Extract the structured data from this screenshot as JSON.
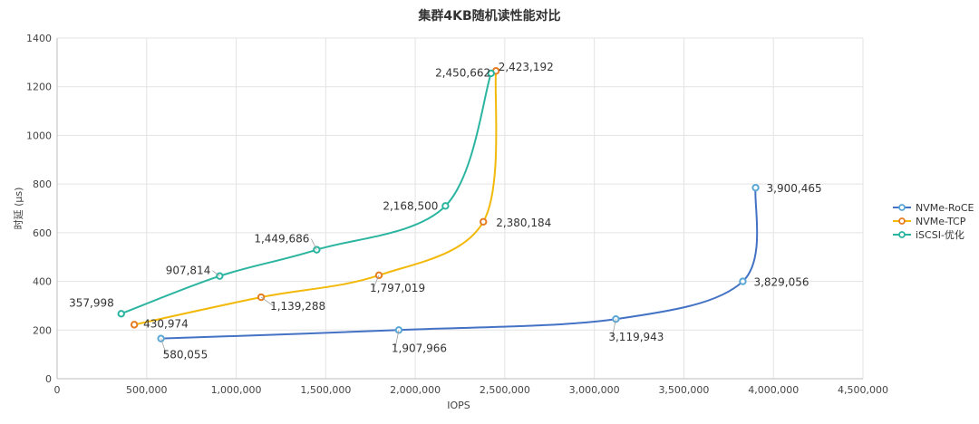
{
  "chart_data": {
    "type": "line",
    "title": "集群4KB随机读性能对比",
    "xlabel": "IOPS",
    "ylabel": "时延 (µs)",
    "xlim": [
      0,
      4500000
    ],
    "ylim": [
      0,
      1400
    ],
    "xticks": [
      0,
      500000,
      1000000,
      1500000,
      2000000,
      2500000,
      3000000,
      3500000,
      4000000,
      4500000
    ],
    "xtick_labels": [
      "0",
      "500,000",
      "1,000,000",
      "1,500,000",
      "2,000,000",
      "2,500,000",
      "3,000,000",
      "3,500,000",
      "4,000,000",
      "4,500,000"
    ],
    "yticks": [
      0,
      200,
      400,
      600,
      800,
      1000,
      1200,
      1400
    ],
    "ytick_labels": [
      "0",
      "200",
      "400",
      "600",
      "800",
      "1000",
      "1200",
      "1400"
    ],
    "grid": true,
    "legend_position": "right",
    "series": [
      {
        "name": "NVMe-RoCE",
        "color": "#4472c4",
        "marker_color": "#5aa7d6",
        "points": [
          {
            "x": 580055,
            "y": 165,
            "label": "580,055"
          },
          {
            "x": 1907966,
            "y": 200,
            "label": "1,907,966"
          },
          {
            "x": 3119943,
            "y": 245,
            "label": "3,119,943"
          },
          {
            "x": 3829056,
            "y": 400,
            "label": "3,829,056"
          },
          {
            "x": 3900465,
            "y": 785,
            "label": "3,900,465"
          }
        ]
      },
      {
        "name": "NVMe-TCP",
        "color": "#f2b90a",
        "marker_color": "#e67e22",
        "points": [
          {
            "x": 430974,
            "y": 222,
            "label": "430,974"
          },
          {
            "x": 1139288,
            "y": 335,
            "label": "1,139,288"
          },
          {
            "x": 1797019,
            "y": 425,
            "label": "1,797,019"
          },
          {
            "x": 2380184,
            "y": 645,
            "label": "2,380,184"
          },
          {
            "x": 2450662,
            "y": 1265,
            "label": "2,450,662"
          }
        ]
      },
      {
        "name": "iSCSI-优化",
        "color": "#2bb5a0",
        "marker_color": "#2bb5a0",
        "points": [
          {
            "x": 357998,
            "y": 267,
            "label": "357,998"
          },
          {
            "x": 907814,
            "y": 422,
            "label": "907,814"
          },
          {
            "x": 1449686,
            "y": 530,
            "label": "1,449,686"
          },
          {
            "x": 2168500,
            "y": 710,
            "label": "2,168,500"
          },
          {
            "x": 2423192,
            "y": 1255,
            "label": "2,423,192"
          }
        ]
      }
    ]
  }
}
